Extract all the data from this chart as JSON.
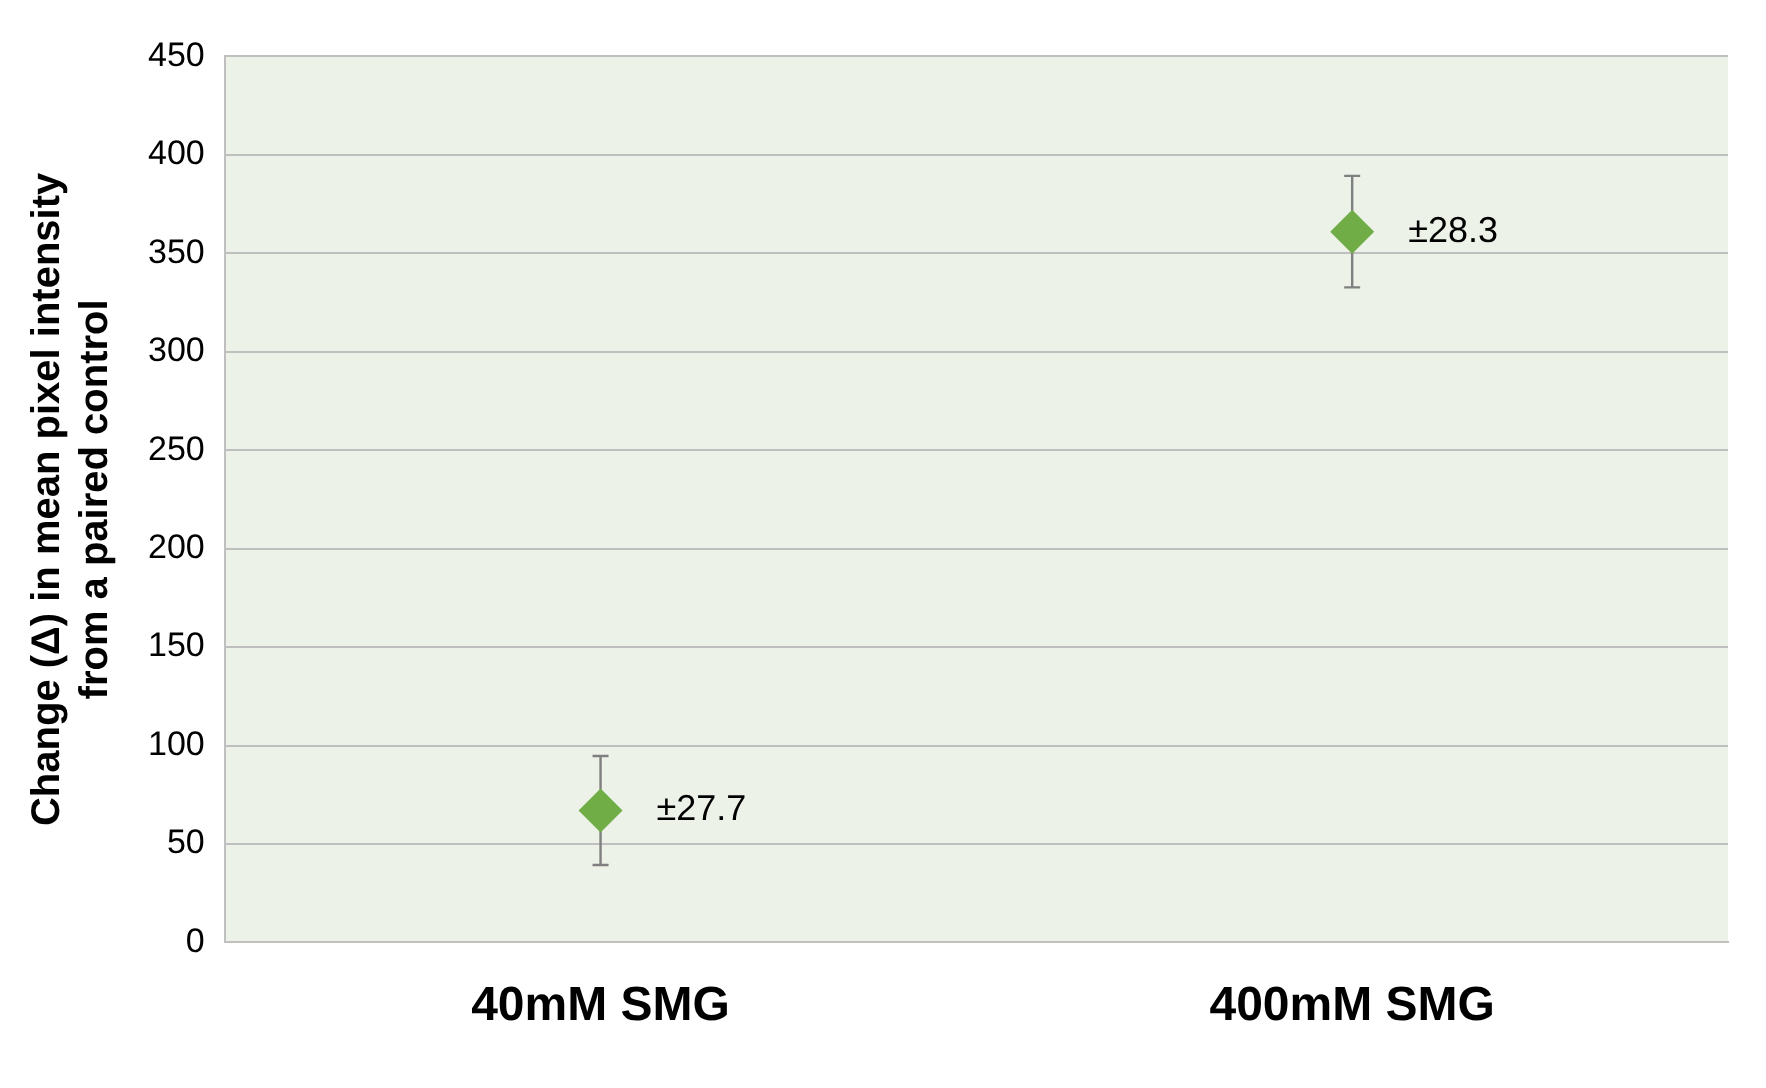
{
  "chart_data": {
    "type": "scatter",
    "ylabel": "Change (Δ) in mean pixel intensity\nfrom a paired control",
    "categories": [
      "40mM SMG",
      "400mM SMG"
    ],
    "series": [
      {
        "color": "#70ad47",
        "values": [
          67,
          361
        ],
        "errors": [
          27.7,
          28.3
        ]
      }
    ],
    "annotations": [
      {
        "text": "±27.7",
        "x": "40mM SMG",
        "y": 67
      },
      {
        "text": "±28.3",
        "x": "400mM SMG",
        "y": 361
      }
    ],
    "ylim": [
      0,
      450
    ],
    "yticks": [
      0,
      50,
      100,
      150,
      200,
      250,
      300,
      350,
      400,
      450
    ],
    "grid": "y",
    "marker": "diamond",
    "legend": false
  }
}
